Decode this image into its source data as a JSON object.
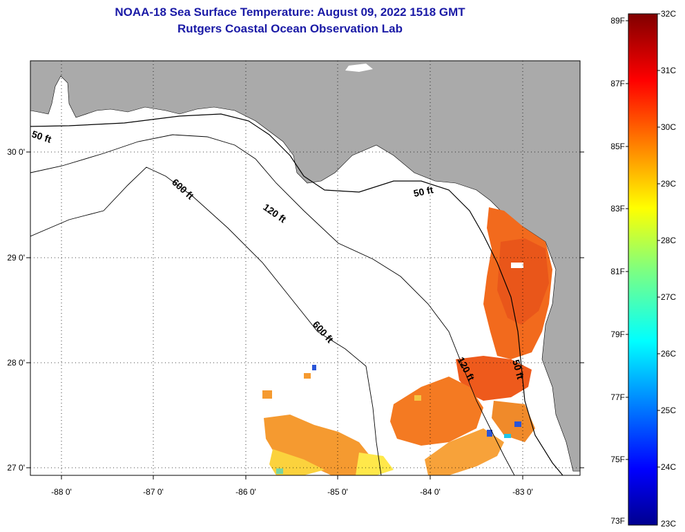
{
  "title": {
    "line1": "NOAA-18 Sea Surface Temperature:  August 09, 2022 1518 GMT",
    "line2": "Rutgers Coastal Ocean Observation Lab"
  },
  "map": {
    "lon_ticks": [
      "-88 0'",
      "-87 0'",
      "-86 0'",
      "-85 0'",
      "-84 0'",
      "-83 0'"
    ],
    "lat_ticks": [
      "30 0'",
      "29 0'",
      "28 0'",
      "27 0'"
    ],
    "contour_labels": [
      "50 ft",
      "600 ft",
      "120 ft",
      "50 ft",
      "600 ft",
      "120 ft",
      "50 ft"
    ],
    "land_color": "#aaaaaa",
    "ocean_color": "#ffffff"
  },
  "colorbar": {
    "fahrenheit": [
      "89F",
      "87F",
      "85F",
      "83F",
      "81F",
      "79F",
      "77F",
      "75F",
      "73F"
    ],
    "celsius": [
      "32C",
      "31C",
      "30C",
      "29C",
      "28C",
      "27C",
      "26C",
      "25C",
      "24C",
      "23C"
    ]
  }
}
